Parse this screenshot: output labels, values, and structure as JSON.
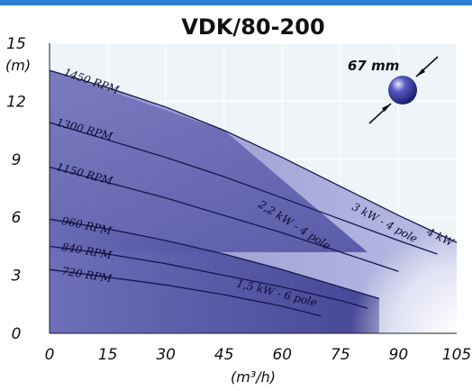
{
  "chart_data": {
    "type": "line",
    "title": "VDK/80-200",
    "xlabel": "(m³/h)",
    "ylabel": "(m)",
    "xlim": [
      0,
      105
    ],
    "ylim": [
      0,
      15
    ],
    "x_ticks": [
      "0",
      "15",
      "30",
      "45",
      "60",
      "75",
      "90",
      "105"
    ],
    "y_ticks": [
      "0",
      "3",
      "6",
      "9",
      "12",
      "15"
    ],
    "grid": true,
    "series": [
      {
        "name": "1450 RPM",
        "points": [
          [
            0,
            13.6
          ],
          [
            15,
            12.7
          ],
          [
            30,
            11.7
          ],
          [
            45,
            10.5
          ],
          [
            60,
            9.1
          ],
          [
            75,
            7.6
          ],
          [
            90,
            6.1
          ],
          [
            105,
            4.7
          ]
        ]
      },
      {
        "name": "1300 RPM",
        "points": [
          [
            0,
            10.9
          ],
          [
            15,
            10.0
          ],
          [
            30,
            9.1
          ],
          [
            45,
            8.1
          ],
          [
            60,
            7.0
          ],
          [
            75,
            5.9
          ],
          [
            90,
            4.8
          ],
          [
            100,
            4.1
          ]
        ]
      },
      {
        "name": "1150 RPM",
        "points": [
          [
            0,
            8.6
          ],
          [
            15,
            7.8
          ],
          [
            30,
            7.0
          ],
          [
            45,
            6.1
          ],
          [
            60,
            5.2
          ],
          [
            75,
            4.2
          ],
          [
            90,
            3.2
          ]
        ]
      },
      {
        "name": "960 RPM",
        "points": [
          [
            0,
            5.9
          ],
          [
            15,
            5.4
          ],
          [
            30,
            4.8
          ],
          [
            45,
            4.1
          ],
          [
            60,
            3.3
          ],
          [
            75,
            2.4
          ],
          [
            85,
            1.8
          ]
        ]
      },
      {
        "name": "840 RPM",
        "points": [
          [
            0,
            4.5
          ],
          [
            15,
            4.1
          ],
          [
            30,
            3.6
          ],
          [
            45,
            3.0
          ],
          [
            60,
            2.4
          ],
          [
            75,
            1.7
          ],
          [
            82,
            1.3
          ]
        ]
      },
      {
        "name": "720 RPM",
        "points": [
          [
            0,
            3.3
          ],
          [
            15,
            2.9
          ],
          [
            30,
            2.5
          ],
          [
            45,
            2.0
          ],
          [
            60,
            1.4
          ],
          [
            70,
            0.9
          ]
        ]
      }
    ],
    "regions": [
      "2,2 kW - 4 pole",
      "3 kW - 4 pole",
      "4 kW",
      "1,5 kW - 6 pole"
    ],
    "annotation": "67 mm"
  }
}
